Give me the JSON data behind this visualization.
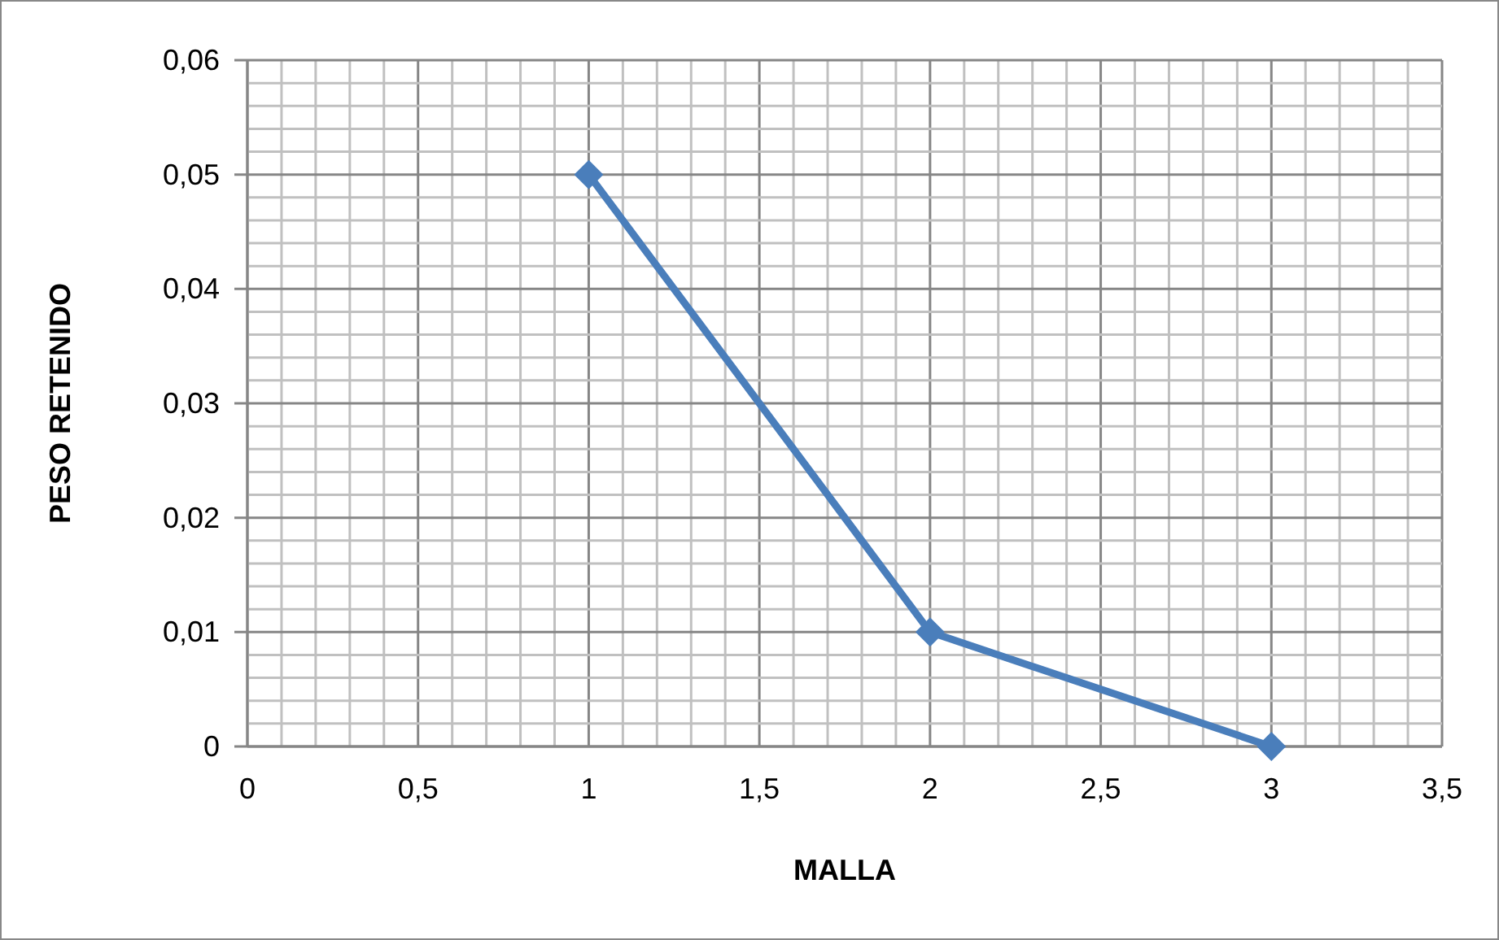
{
  "chart_data": {
    "type": "line",
    "xlabel": "MALLA",
    "ylabel": "PESO RETENIDO",
    "x": [
      1,
      2,
      3
    ],
    "series": [
      {
        "color": "#4a7ebb",
        "values": [
          0.05,
          0.01,
          0
        ]
      }
    ],
    "xlim": [
      0,
      3.5
    ],
    "ylim": [
      0,
      0.06
    ],
    "xticks": [
      0,
      {
        "value": 0.1,
        "label": null
      },
      {
        "value": 0.2,
        "label": null
      },
      {
        "value": 0.3,
        "label": null
      },
      {
        "value": 0.4,
        "label": null
      },
      {
        "value": 0.5,
        "label": "0,5"
      },
      {
        "value": 0.6,
        "label": null
      },
      {
        "value": 0.7,
        "label": null
      },
      {
        "value": 0.8,
        "label": null
      },
      {
        "value": 0.9,
        "label": null
      },
      1,
      {
        "value": 1.1,
        "label": null
      },
      {
        "value": 1.2,
        "label": null
      },
      {
        "value": 1.3,
        "label": null
      },
      {
        "value": 1.4,
        "label": null
      },
      {
        "value": 1.5,
        "label": "1,5"
      },
      {
        "value": 1.6,
        "label": null
      },
      {
        "value": 1.7,
        "label": null
      },
      {
        "value": 1.8,
        "label": null
      },
      {
        "value": 1.9,
        "label": null
      },
      2,
      {
        "value": 2.1,
        "label": null
      },
      {
        "value": 2.2,
        "label": null
      },
      {
        "value": 2.3,
        "label": null
      },
      {
        "value": 2.4,
        "label": null
      },
      {
        "value": 2.5,
        "label": "2,5"
      },
      {
        "value": 2.6,
        "label": null
      },
      {
        "value": 2.7,
        "label": null
      },
      {
        "value": 2.8,
        "label": null
      },
      {
        "value": 2.9,
        "label": null
      },
      3,
      {
        "value": 3.1,
        "label": null
      },
      {
        "value": 3.2,
        "label": null
      },
      {
        "value": 3.3,
        "label": null
      },
      {
        "value": 3.4,
        "label": null
      },
      {
        "value": 3.5,
        "label": "3,5"
      }
    ],
    "yticks": [
      0,
      {
        "value": 0.002,
        "label": null
      },
      {
        "value": 0.004,
        "label": null
      },
      {
        "value": 0.006,
        "label": null
      },
      {
        "value": 0.008,
        "label": null
      },
      {
        "value": 0.01,
        "label": "0,01"
      },
      {
        "value": 0.012,
        "label": null
      },
      {
        "value": 0.014,
        "label": null
      },
      {
        "value": 0.016,
        "label": null
      },
      {
        "value": 0.018,
        "label": null
      },
      {
        "value": 0.02,
        "label": "0,02"
      },
      {
        "value": 0.022,
        "label": null
      },
      {
        "value": 0.024,
        "label": null
      },
      {
        "value": 0.026,
        "label": null
      },
      {
        "value": 0.028,
        "label": null
      },
      {
        "value": 0.03,
        "label": "0,03"
      },
      {
        "value": 0.032,
        "label": null
      },
      {
        "value": 0.034,
        "label": null
      },
      {
        "value": 0.036,
        "label": null
      },
      {
        "value": 0.038,
        "label": null
      },
      {
        "value": 0.04,
        "label": "0,04"
      },
      {
        "value": 0.042,
        "label": null
      },
      {
        "value": 0.044,
        "label": null
      },
      {
        "value": 0.046,
        "label": null
      },
      {
        "value": 0.048,
        "label": null
      },
      {
        "value": 0.05,
        "label": "0,05"
      },
      {
        "value": 0.052,
        "label": null
      },
      {
        "value": 0.054,
        "label": null
      },
      {
        "value": 0.056,
        "label": null
      },
      {
        "value": 0.058,
        "label": null
      },
      {
        "value": 0.06,
        "label": "0,06"
      }
    ],
    "grid": true,
    "marker": "diamond",
    "line_style": "solid"
  }
}
